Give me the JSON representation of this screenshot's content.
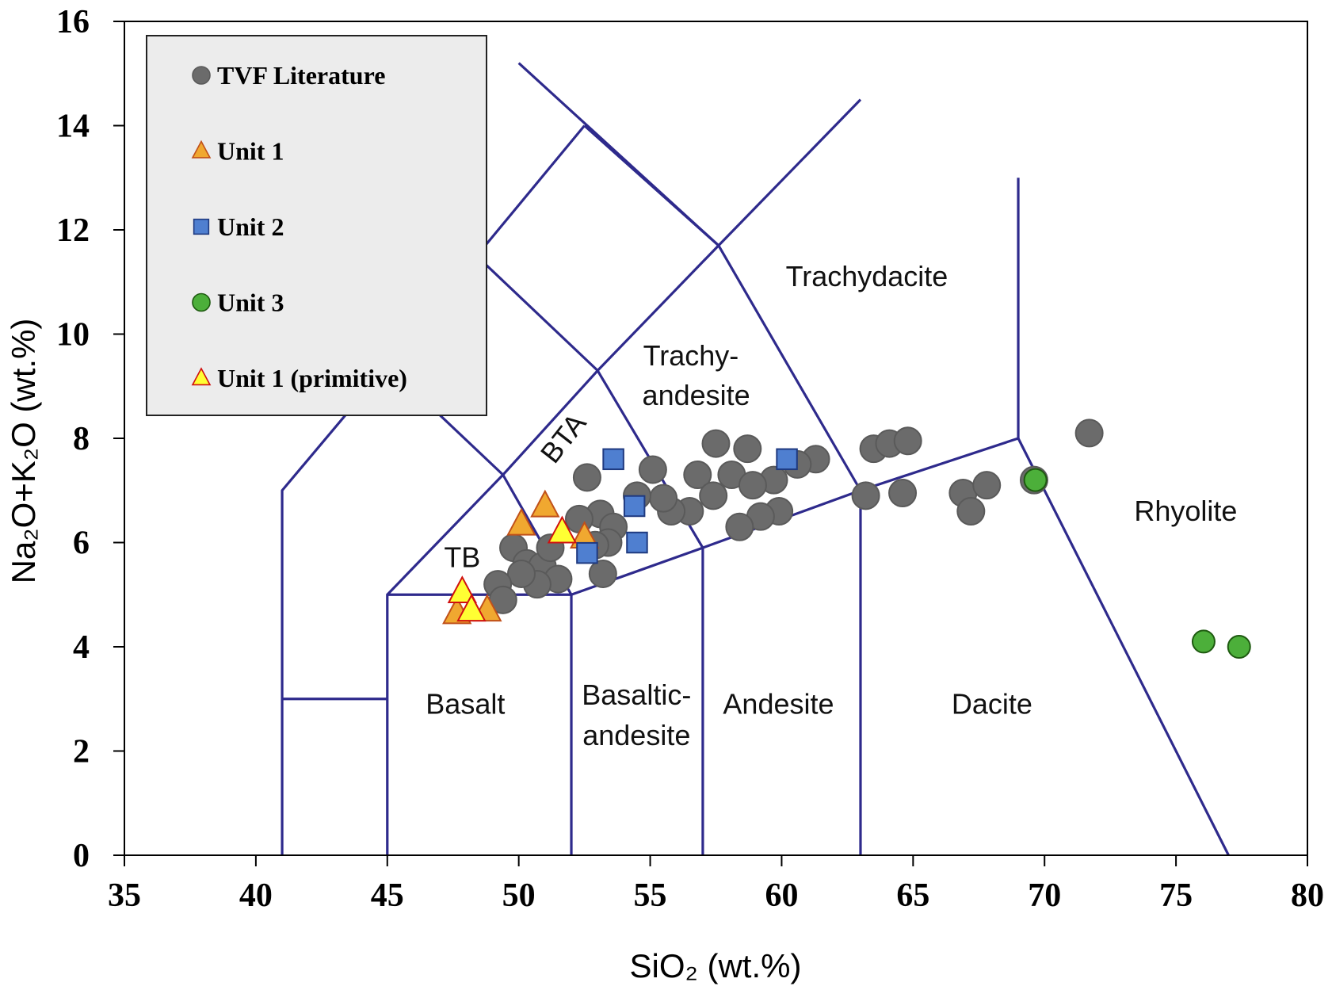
{
  "chart_data": {
    "type": "scatter",
    "xlabel": "SiO₂ (wt.%)",
    "ylabel": "Na₂O+K₂O (wt.%)",
    "xlim": [
      35,
      80
    ],
    "xticks": [
      35,
      40,
      45,
      50,
      55,
      60,
      65,
      70,
      75,
      80
    ],
    "ylim": [
      0,
      16
    ],
    "yticks": [
      0,
      2,
      4,
      6,
      8,
      10,
      12,
      14,
      16
    ],
    "boundary_color": "#2e2a8c",
    "boundaries": [
      [
        [
          41,
          0
        ],
        [
          41,
          7
        ],
        [
          45,
          9.4
        ],
        [
          48.4,
          11.5
        ],
        [
          52.5,
          14
        ]
      ],
      [
        [
          41,
          3
        ],
        [
          45,
          3
        ]
      ],
      [
        [
          45,
          0
        ],
        [
          45,
          5
        ],
        [
          52,
          5
        ],
        [
          57,
          5.9
        ],
        [
          63,
          7
        ],
        [
          69,
          8
        ],
        [
          69,
          13
        ]
      ],
      [
        [
          45,
          5
        ],
        [
          49.4,
          7.3
        ],
        [
          53,
          9.3
        ],
        [
          57.6,
          11.7
        ],
        [
          63,
          14.5
        ]
      ],
      [
        [
          52,
          0
        ],
        [
          52,
          5
        ]
      ],
      [
        [
          57,
          0
        ],
        [
          57,
          5.9
        ]
      ],
      [
        [
          63,
          0
        ],
        [
          63,
          7
        ]
      ],
      [
        [
          52,
          5
        ],
        [
          49.4,
          7.3
        ],
        [
          45,
          9.4
        ]
      ],
      [
        [
          57,
          5.9
        ],
        [
          53,
          9.3
        ],
        [
          48.4,
          11.5
        ]
      ],
      [
        [
          63,
          7
        ],
        [
          57.6,
          11.7
        ],
        [
          50,
          15.2
        ]
      ],
      [
        [
          52.5,
          14
        ],
        [
          57.6,
          11.7
        ]
      ],
      [
        [
          69,
          8
        ],
        [
          77,
          0
        ]
      ]
    ],
    "field_labels": [
      "Trachydacite",
      "Trachy-",
      "andesite",
      "BTA",
      "TB",
      "Basalt",
      "Basaltic-",
      "andesite",
      "Andesite",
      "Dacite",
      "Rhyolite"
    ],
    "series": [
      {
        "name": "TVF Literature",
        "marker": "circle",
        "color": "#6b6b6b",
        "edge": "#5a5a5a",
        "x": [
          71.7,
          69.6,
          63.2,
          63.5,
          64.1,
          64.8,
          64.6,
          66.9,
          67.8,
          67.2,
          61.3,
          60.6,
          59.7,
          58.7,
          57.5,
          56.8,
          57.4,
          58.1,
          58.9,
          59.9,
          59.2,
          58.4,
          56.5,
          55.8,
          55.5,
          55.1,
          54.5,
          52.6,
          53.1,
          53.6,
          53.4,
          52.3,
          52.9,
          53.2,
          49.8,
          50.3,
          50.9,
          51.5,
          50.7,
          50.1,
          49.2,
          49.4,
          51.2
        ],
        "values": [
          8.1,
          7.2,
          6.9,
          7.8,
          7.9,
          7.95,
          6.95,
          6.95,
          7.1,
          6.6,
          7.6,
          7.5,
          7.2,
          7.8,
          7.9,
          7.3,
          6.9,
          7.3,
          7.1,
          6.6,
          6.5,
          6.3,
          6.6,
          6.6,
          6.85,
          7.4,
          6.9,
          7.25,
          6.55,
          6.3,
          6.0,
          6.45,
          5.95,
          5.4,
          5.9,
          5.6,
          5.55,
          5.3,
          5.2,
          5.4,
          5.2,
          4.9,
          5.9
        ]
      },
      {
        "name": "Unit 1",
        "marker": "triangle",
        "color": "#f0a830",
        "edge": "#c0501a",
        "x": [
          50.1,
          51.0,
          52.5,
          47.65,
          48.8
        ],
        "values": [
          6.35,
          6.7,
          6.1,
          4.65,
          4.7
        ]
      },
      {
        "name": "Unit 2",
        "marker": "square",
        "color": "#4f7fd0",
        "edge": "#1f3a80",
        "x": [
          53.6,
          60.2,
          54.4,
          54.5,
          52.6
        ],
        "values": [
          7.6,
          7.6,
          6.7,
          6.0,
          5.8
        ]
      },
      {
        "name": "Unit 3",
        "marker": "circle",
        "color": "#4caf3a",
        "edge": "#1e5a10",
        "x": [
          69.65,
          76.05,
          77.4
        ],
        "values": [
          7.2,
          4.1,
          4.0
        ]
      },
      {
        "name": "Unit 1 (primitive)",
        "marker": "triangle",
        "color": "#ffff33",
        "edge": "#d01010",
        "x": [
          47.85,
          48.2,
          51.65
        ],
        "values": [
          5.05,
          4.7,
          6.2
        ]
      }
    ]
  }
}
